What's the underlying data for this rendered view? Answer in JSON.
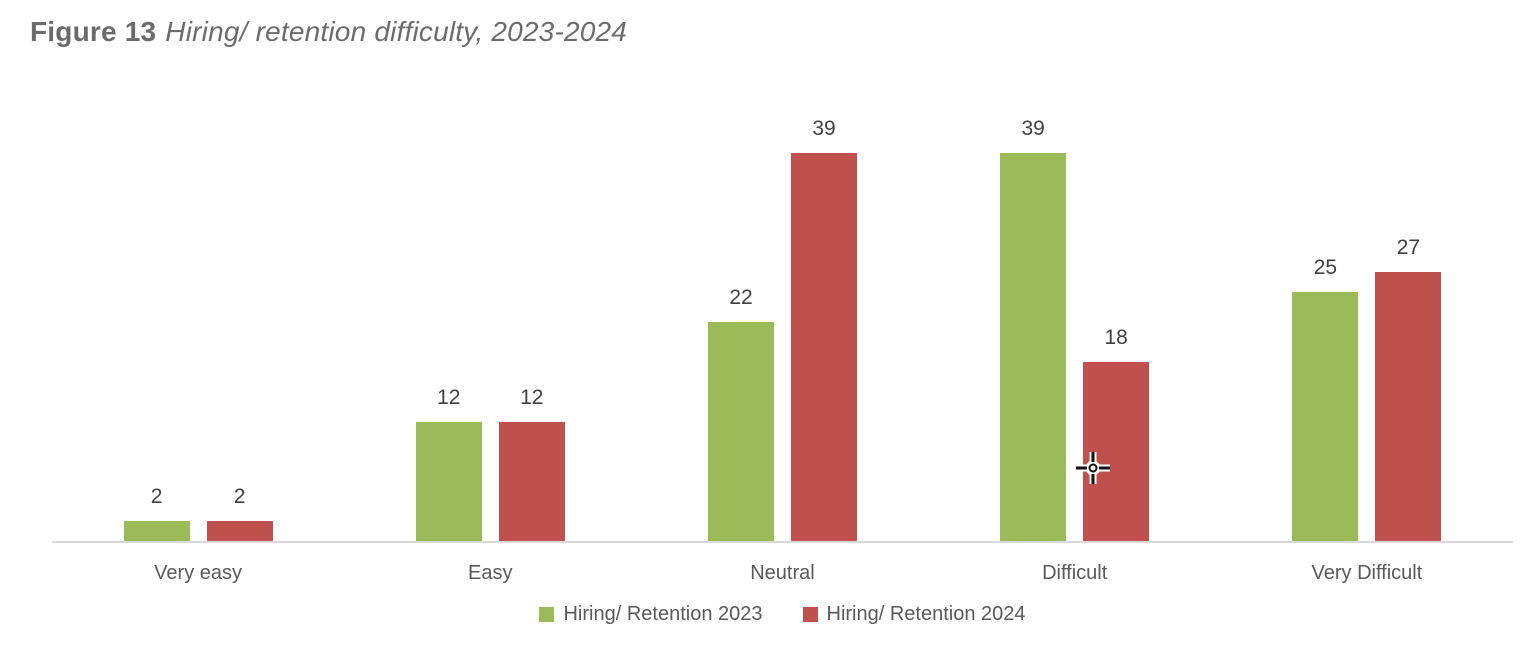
{
  "title": {
    "prefix": "Figure 13",
    "text": "Hiring/ retention difficulty, 2023-2024"
  },
  "colors": {
    "series_2023": "#9bbb59",
    "series_2024": "#c0504d",
    "axis_line": "#d9d9d9",
    "title_text": "#6b6b6b",
    "category_text": "#595959",
    "value_text": "#404040"
  },
  "legend": {
    "items": [
      {
        "label": "Hiring/ Retention 2023",
        "color": "#9bbb59"
      },
      {
        "label": "Hiring/ Retention 2024",
        "color": "#c0504d"
      }
    ],
    "position": "bottom"
  },
  "cursor": {
    "type": "precision-crosshair"
  },
  "chart_data": {
    "type": "bar",
    "title": "Figure 13 Hiring/ retention difficulty, 2023-2024",
    "categories": [
      "Very easy",
      "Easy",
      "Neutral",
      "Difficult",
      "Very Difficult"
    ],
    "series": [
      {
        "name": "Hiring/ Retention 2023",
        "color": "#9bbb59",
        "values": [
          2,
          12,
          22,
          39,
          25
        ]
      },
      {
        "name": "Hiring/ Retention 2024",
        "color": "#c0504d",
        "values": [
          2,
          12,
          39,
          18,
          27
        ]
      }
    ],
    "xlabel": "",
    "ylabel": "",
    "ylim": [
      0,
      39
    ],
    "y_axis_visible": false,
    "grid": false,
    "data_labels": true,
    "legend_position": "bottom"
  }
}
